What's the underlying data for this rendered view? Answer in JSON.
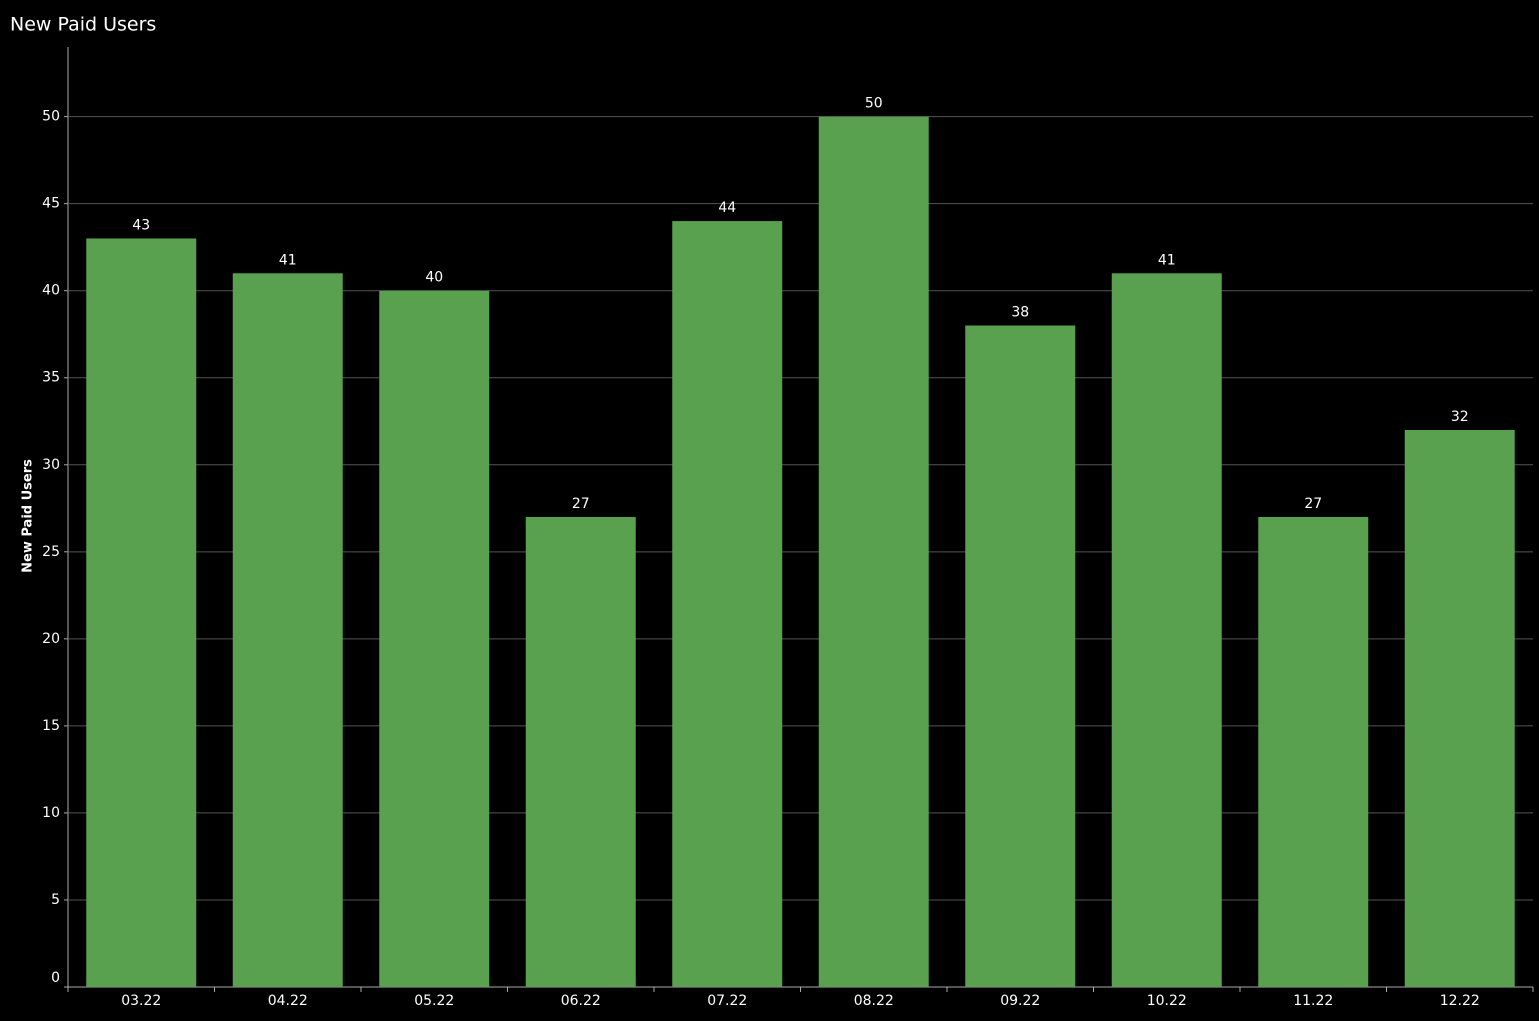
{
  "chart_data": {
    "type": "bar",
    "title": "New Paid Users",
    "y_label": "New Paid Users",
    "categories": [
      "03.22",
      "04.22",
      "05.22",
      "06.22",
      "07.22",
      "08.22",
      "09.22",
      "10.22",
      "11.22",
      "12.22"
    ],
    "values": [
      43,
      41,
      40,
      27,
      44,
      50,
      38,
      41,
      27,
      32
    ],
    "color": "#59a14f",
    "ylim": [
      0,
      54
    ],
    "yticks": [
      0,
      5,
      10,
      15,
      20,
      25,
      30,
      35,
      40,
      45,
      50
    ],
    "grid": true
  }
}
